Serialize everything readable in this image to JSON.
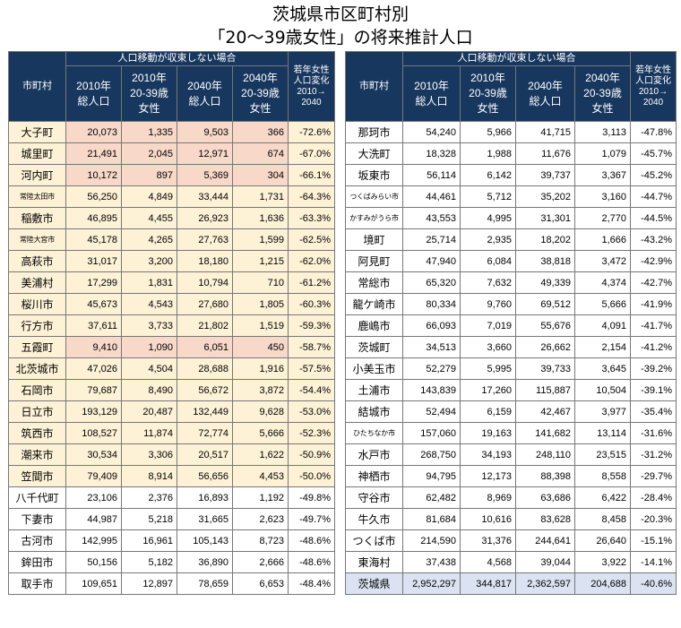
{
  "title_line1": "茨城県市区町村別",
  "title_line2": "「20～39歳女性」の将来推計人口",
  "header": {
    "group": "人口移動が収束しない場合",
    "city": "市町村",
    "col1_l1": "2010年",
    "col1_l2": "総人口",
    "col2_l1": "2010年",
    "col2_l2": "20-39歳",
    "col2_l3": "女性",
    "col3_l1": "2040年",
    "col3_l2": "総人口",
    "col4_l1": "2040年",
    "col4_l2": "20-39歳",
    "col4_l3": "女性",
    "col5_l1": "若年女性",
    "col5_l2": "人口変化",
    "col5_l3": "2010→",
    "col5_l4": "2040"
  },
  "colors": {
    "header_bg": "#17375e",
    "highlight": "#fdf2d6",
    "pink": "#f8d8c8",
    "total": "#dbe3f2"
  },
  "left_rows": [
    {
      "name": "大子町",
      "p2010": "20,073",
      "w2010": "1,335",
      "p2040": "9,503",
      "w2040": "366",
      "chg": "-72.6%"
    },
    {
      "name": "城里町",
      "p2010": "21,491",
      "w2010": "2,045",
      "p2040": "12,971",
      "w2040": "674",
      "chg": "-67.0%"
    },
    {
      "name": "河内町",
      "p2010": "10,172",
      "w2010": "897",
      "p2040": "5,369",
      "w2040": "304",
      "chg": "-66.1%"
    },
    {
      "name": "常陸太田市",
      "p2010": "56,250",
      "w2010": "4,849",
      "p2040": "33,444",
      "w2040": "1,731",
      "chg": "-64.3%"
    },
    {
      "name": "稲敷市",
      "p2010": "46,895",
      "w2010": "4,455",
      "p2040": "26,923",
      "w2040": "1,636",
      "chg": "-63.3%"
    },
    {
      "name": "常陸大宮市",
      "p2010": "45,178",
      "w2010": "4,265",
      "p2040": "27,763",
      "w2040": "1,599",
      "chg": "-62.5%"
    },
    {
      "name": "高萩市",
      "p2010": "31,017",
      "w2010": "3,200",
      "p2040": "18,180",
      "w2040": "1,215",
      "chg": "-62.0%"
    },
    {
      "name": "美浦村",
      "p2010": "17,299",
      "w2010": "1,831",
      "p2040": "10,794",
      "w2040": "710",
      "chg": "-61.2%"
    },
    {
      "name": "桜川市",
      "p2010": "45,673",
      "w2010": "4,543",
      "p2040": "27,680",
      "w2040": "1,805",
      "chg": "-60.3%"
    },
    {
      "name": "行方市",
      "p2010": "37,611",
      "w2010": "3,733",
      "p2040": "21,802",
      "w2040": "1,519",
      "chg": "-59.3%"
    },
    {
      "name": "五霞町",
      "p2010": "9,410",
      "w2010": "1,090",
      "p2040": "6,051",
      "w2040": "450",
      "chg": "-58.7%"
    },
    {
      "name": "北茨城市",
      "p2010": "47,026",
      "w2010": "4,504",
      "p2040": "28,688",
      "w2040": "1,916",
      "chg": "-57.5%"
    },
    {
      "name": "石岡市",
      "p2010": "79,687",
      "w2010": "8,490",
      "p2040": "56,672",
      "w2040": "3,872",
      "chg": "-54.4%"
    },
    {
      "name": "日立市",
      "p2010": "193,129",
      "w2010": "20,487",
      "p2040": "132,449",
      "w2040": "9,628",
      "chg": "-53.0%"
    },
    {
      "name": "筑西市",
      "p2010": "108,527",
      "w2010": "11,874",
      "p2040": "72,774",
      "w2040": "5,666",
      "chg": "-52.3%"
    },
    {
      "name": "潮来市",
      "p2010": "30,534",
      "w2010": "3,306",
      "p2040": "20,517",
      "w2040": "1,622",
      "chg": "-50.9%"
    },
    {
      "name": "笠間市",
      "p2010": "79,409",
      "w2010": "8,914",
      "p2040": "56,656",
      "w2040": "4,453",
      "chg": "-50.0%"
    },
    {
      "name": "八千代町",
      "p2010": "23,106",
      "w2010": "2,376",
      "p2040": "16,893",
      "w2040": "1,192",
      "chg": "-49.8%"
    },
    {
      "name": "下妻市",
      "p2010": "44,987",
      "w2010": "5,218",
      "p2040": "31,665",
      "w2040": "2,623",
      "chg": "-49.7%"
    },
    {
      "name": "古河市",
      "p2010": "142,995",
      "w2010": "16,961",
      "p2040": "105,143",
      "w2040": "8,723",
      "chg": "-48.6%"
    },
    {
      "name": "鉾田市",
      "p2010": "50,156",
      "w2010": "5,182",
      "p2040": "36,890",
      "w2040": "2,666",
      "chg": "-48.6%"
    },
    {
      "name": "取手市",
      "p2010": "109,651",
      "w2010": "12,897",
      "p2040": "78,659",
      "w2040": "6,653",
      "chg": "-48.4%"
    }
  ],
  "right_rows": [
    {
      "name": "那珂市",
      "p2010": "54,240",
      "w2010": "5,966",
      "p2040": "41,715",
      "w2040": "3,113",
      "chg": "-47.8%"
    },
    {
      "name": "大洗町",
      "p2010": "18,328",
      "w2010": "1,988",
      "p2040": "11,676",
      "w2040": "1,079",
      "chg": "-45.7%"
    },
    {
      "name": "坂東市",
      "p2010": "56,114",
      "w2010": "6,142",
      "p2040": "39,737",
      "w2040": "3,367",
      "chg": "-45.2%"
    },
    {
      "name": "つくばみらい市",
      "p2010": "44,461",
      "w2010": "5,712",
      "p2040": "35,202",
      "w2040": "3,160",
      "chg": "-44.7%"
    },
    {
      "name": "かすみがうら市",
      "p2010": "43,553",
      "w2010": "4,995",
      "p2040": "31,301",
      "w2040": "2,770",
      "chg": "-44.5%"
    },
    {
      "name": "境町",
      "p2010": "25,714",
      "w2010": "2,935",
      "p2040": "18,202",
      "w2040": "1,666",
      "chg": "-43.2%"
    },
    {
      "name": "阿見町",
      "p2010": "47,940",
      "w2010": "6,084",
      "p2040": "38,818",
      "w2040": "3,472",
      "chg": "-42.9%"
    },
    {
      "name": "常総市",
      "p2010": "65,320",
      "w2010": "7,632",
      "p2040": "49,339",
      "w2040": "4,374",
      "chg": "-42.7%"
    },
    {
      "name": "龍ケ崎市",
      "p2010": "80,334",
      "w2010": "9,760",
      "p2040": "69,512",
      "w2040": "5,666",
      "chg": "-41.9%"
    },
    {
      "name": "鹿嶋市",
      "p2010": "66,093",
      "w2010": "7,019",
      "p2040": "55,676",
      "w2040": "4,091",
      "chg": "-41.7%"
    },
    {
      "name": "茨城町",
      "p2010": "34,513",
      "w2010": "3,660",
      "p2040": "26,662",
      "w2040": "2,154",
      "chg": "-41.2%"
    },
    {
      "name": "小美玉市",
      "p2010": "52,279",
      "w2010": "5,995",
      "p2040": "39,733",
      "w2040": "3,645",
      "chg": "-39.2%"
    },
    {
      "name": "土浦市",
      "p2010": "143,839",
      "w2010": "17,260",
      "p2040": "115,887",
      "w2040": "10,504",
      "chg": "-39.1%"
    },
    {
      "name": "結城市",
      "p2010": "52,494",
      "w2010": "6,159",
      "p2040": "42,467",
      "w2040": "3,977",
      "chg": "-35.4%"
    },
    {
      "name": "ひたちなか市",
      "p2010": "157,060",
      "w2010": "19,163",
      "p2040": "141,682",
      "w2040": "13,114",
      "chg": "-31.6%"
    },
    {
      "name": "水戸市",
      "p2010": "268,750",
      "w2010": "34,193",
      "p2040": "248,110",
      "w2040": "23,515",
      "chg": "-31.2%"
    },
    {
      "name": "神栖市",
      "p2010": "94,795",
      "w2010": "12,173",
      "p2040": "88,398",
      "w2040": "8,558",
      "chg": "-29.7%"
    },
    {
      "name": "守谷市",
      "p2010": "62,482",
      "w2010": "8,969",
      "p2040": "63,686",
      "w2040": "6,422",
      "chg": "-28.4%"
    },
    {
      "name": "牛久市",
      "p2010": "81,684",
      "w2010": "10,616",
      "p2040": "83,628",
      "w2040": "8,458",
      "chg": "-20.3%"
    },
    {
      "name": "つくば市",
      "p2010": "214,590",
      "w2010": "31,376",
      "p2040": "244,641",
      "w2040": "26,640",
      "chg": "-15.1%"
    },
    {
      "name": "東海村",
      "p2010": "37,438",
      "w2010": "4,568",
      "p2040": "39,044",
      "w2040": "3,922",
      "chg": "-14.1%"
    },
    {
      "name": "茨城県",
      "p2010": "2,952,297",
      "w2010": "344,817",
      "p2040": "2,362,597",
      "w2040": "204,688",
      "chg": "-40.6%"
    }
  ]
}
